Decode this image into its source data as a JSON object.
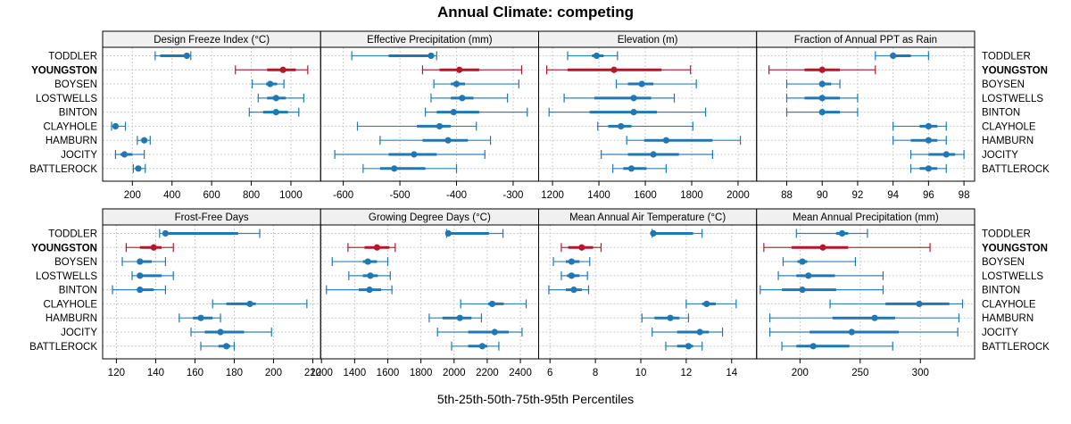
{
  "chart_data": {
    "type": "dotplot-percentiles",
    "title": "Annual Climate: competing",
    "xlabel": "5th-25th-50th-75th-95th Percentiles",
    "ylabel": "",
    "grid": true,
    "colors": {
      "default": "#1f78b4",
      "highlight": "#b2182b"
    },
    "highlight": "YOUNGSTON",
    "categories": [
      "TODDLER",
      "YOUNGSTON",
      "BOYSEN",
      "LOSTWELLS",
      "BINTON",
      "CLAYHOLE",
      "HAMBURN",
      "JOCITY",
      "BATTLEROCK"
    ],
    "percentiles": [
      "5th",
      "25th",
      "50th",
      "75th",
      "95th"
    ],
    "panels": [
      {
        "title": "Design Freeze Index (°C)",
        "xlim": [
          50,
          1150
        ],
        "ticks": [
          200,
          400,
          600,
          800,
          1000
        ],
        "tick_side": "bottom",
        "values": [
          [
            315,
            340,
            475,
            480,
            495
          ],
          [
            720,
            880,
            960,
            1025,
            1085
          ],
          [
            805,
            875,
            895,
            930,
            965
          ],
          [
            835,
            880,
            925,
            975,
            1065
          ],
          [
            790,
            860,
            925,
            985,
            1040
          ],
          [
            95,
            105,
            115,
            125,
            165
          ],
          [
            225,
            245,
            260,
            265,
            290
          ],
          [
            115,
            140,
            160,
            200,
            260
          ],
          [
            205,
            220,
            230,
            240,
            265
          ]
        ]
      },
      {
        "title": "Effective Precipitation (mm)",
        "xlim": [
          -640,
          -255
        ],
        "ticks": [
          -600,
          -500,
          -400,
          -300
        ],
        "tick_side": "bottom",
        "values": [
          [
            -585,
            -520,
            -445,
            -440,
            -435
          ],
          [
            -460,
            -430,
            -395,
            -360,
            -285
          ],
          [
            -440,
            -410,
            -400,
            -385,
            -290
          ],
          [
            -445,
            -410,
            -390,
            -370,
            -310
          ],
          [
            -455,
            -435,
            -405,
            -360,
            -275
          ],
          [
            -575,
            -470,
            -430,
            -410,
            -365
          ],
          [
            -535,
            -460,
            -415,
            -380,
            -340
          ],
          [
            -615,
            -520,
            -475,
            -435,
            -350
          ],
          [
            -565,
            -535,
            -510,
            -455,
            -400
          ]
        ]
      },
      {
        "title": "Elevation (m)",
        "xlim": [
          1140,
          2080
        ],
        "ticks": [
          1200,
          1400,
          1600,
          1800,
          2000
        ],
        "tick_side": "bottom",
        "values": [
          [
            1265,
            1370,
            1390,
            1420,
            1480
          ],
          [
            1175,
            1265,
            1465,
            1670,
            1795
          ],
          [
            1475,
            1525,
            1585,
            1635,
            1820
          ],
          [
            1250,
            1380,
            1550,
            1625,
            1725
          ],
          [
            1185,
            1360,
            1550,
            1650,
            1860
          ],
          [
            1395,
            1440,
            1495,
            1540,
            1805
          ],
          [
            1520,
            1595,
            1690,
            1890,
            2010
          ],
          [
            1410,
            1525,
            1635,
            1745,
            1890
          ],
          [
            1460,
            1505,
            1540,
            1605,
            1690
          ]
        ]
      },
      {
        "title": "Fraction of Annual PPT as Rain",
        "xlim": [
          86.3,
          98.6
        ],
        "ticks": [
          88,
          90,
          92,
          94,
          96,
          98
        ],
        "tick_side": "bottom",
        "values": [
          [
            93,
            94,
            94,
            95,
            96
          ],
          [
            87,
            89,
            90,
            91,
            93
          ],
          [
            88,
            90,
            90,
            90.5,
            91
          ],
          [
            88,
            89,
            90,
            91,
            92
          ],
          [
            88,
            90,
            90,
            91,
            92
          ],
          [
            94,
            95.5,
            96,
            96.5,
            97
          ],
          [
            94,
            95,
            96,
            96.5,
            97
          ],
          [
            95,
            96,
            97,
            97.5,
            98
          ],
          [
            95,
            95.5,
            96,
            96.5,
            97
          ]
        ]
      },
      {
        "title": "Frost-Free Days",
        "xlim": [
          113,
          224
        ],
        "ticks": [
          120,
          140,
          160,
          180,
          200,
          220
        ],
        "tick_side": "bottom",
        "values": [
          [
            142,
            145,
            145,
            182,
            193
          ],
          [
            125,
            132,
            139,
            143,
            149
          ],
          [
            123,
            131,
            132,
            138,
            145
          ],
          [
            128,
            131,
            132,
            143,
            149
          ],
          [
            118,
            131,
            132,
            139,
            145
          ],
          [
            169,
            176,
            188,
            191,
            217
          ],
          [
            152,
            159,
            163,
            169,
            173
          ],
          [
            158,
            165,
            173,
            185,
            199
          ],
          [
            163,
            172,
            176,
            178,
            180
          ]
        ]
      },
      {
        "title": "Growing Degree Days (°C)",
        "xlim": [
          1195,
          2510
        ],
        "ticks": [
          1200,
          1400,
          1600,
          1800,
          2000,
          2200,
          2400
        ],
        "tick_side": "bottom",
        "values": [
          [
            1955,
            1965,
            1965,
            2210,
            2295
          ],
          [
            1360,
            1460,
            1535,
            1610,
            1645
          ],
          [
            1265,
            1450,
            1480,
            1535,
            1600
          ],
          [
            1365,
            1450,
            1495,
            1540,
            1615
          ],
          [
            1230,
            1425,
            1490,
            1560,
            1625
          ],
          [
            2040,
            2205,
            2230,
            2300,
            2435
          ],
          [
            1850,
            1930,
            2035,
            2105,
            2165
          ],
          [
            1900,
            2085,
            2245,
            2330,
            2410
          ],
          [
            1985,
            2085,
            2170,
            2200,
            2270
          ]
        ]
      },
      {
        "title": "Mean Annual Air Temperature (°C)",
        "xlim": [
          5.5,
          15.1
        ],
        "ticks": [
          6,
          8,
          10,
          12,
          14
        ],
        "tick_side": "bottom",
        "values": [
          [
            10.5,
            10.5,
            10.55,
            12.3,
            12.7
          ],
          [
            6.5,
            6.8,
            7.4,
            7.9,
            8.25
          ],
          [
            6.15,
            6.7,
            6.95,
            7.3,
            7.75
          ],
          [
            6.5,
            6.75,
            6.95,
            7.3,
            7.65
          ],
          [
            5.95,
            6.7,
            7.05,
            7.4,
            7.7
          ],
          [
            12.0,
            12.7,
            12.9,
            13.3,
            14.2
          ],
          [
            10.05,
            10.6,
            11.3,
            11.7,
            12.1
          ],
          [
            10.5,
            11.6,
            12.6,
            13.0,
            13.6
          ],
          [
            11.1,
            11.6,
            12.1,
            12.3,
            12.7
          ]
        ]
      },
      {
        "title": "Mean Annual Precipitation (mm)",
        "xlim": [
          164,
          345
        ],
        "ticks": [
          200,
          250,
          300
        ],
        "tick_side": "bottom",
        "values": [
          [
            197,
            230,
            235,
            240,
            256
          ],
          [
            170,
            193,
            219,
            240,
            308
          ],
          [
            186,
            198,
            202,
            206,
            246
          ],
          [
            182,
            197,
            207,
            229,
            269
          ],
          [
            167,
            185,
            202,
            230,
            269
          ],
          [
            225,
            271,
            299,
            324,
            335
          ],
          [
            175,
            227,
            262,
            279,
            332
          ],
          [
            175,
            208,
            243,
            282,
            331
          ],
          [
            185,
            197,
            211,
            241,
            277
          ]
        ]
      }
    ]
  }
}
